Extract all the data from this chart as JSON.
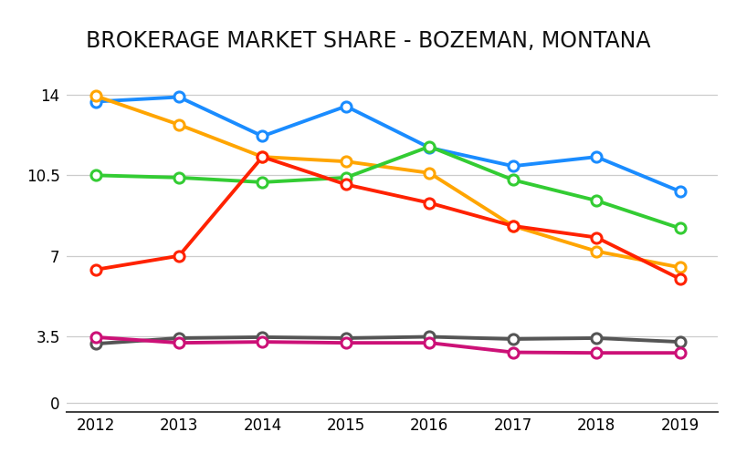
{
  "title": "BROKERAGE MARKET SHARE - BOZEMAN, MONTANA",
  "years": [
    2012,
    2013,
    2014,
    2015,
    2016,
    2017,
    2018,
    2019
  ],
  "series_upper": [
    {
      "color": "#1a8cff",
      "values": [
        13.7,
        13.9,
        12.2,
        13.5,
        11.7,
        10.9,
        11.3,
        9.8
      ]
    },
    {
      "color": "#ffa500",
      "values": [
        13.95,
        12.7,
        11.3,
        11.1,
        10.6,
        8.3,
        7.2,
        6.5
      ]
    },
    {
      "color": "#33cc33",
      "values": [
        10.5,
        10.4,
        10.2,
        10.4,
        11.75,
        10.3,
        9.4,
        8.2
      ]
    },
    {
      "color": "#ff2200",
      "values": [
        6.4,
        7.0,
        11.3,
        10.1,
        9.3,
        8.3,
        7.8,
        6.0
      ]
    }
  ],
  "series_lower": [
    {
      "color": "#555555",
      "values": [
        3.1,
        3.4,
        3.45,
        3.4,
        3.47,
        3.35,
        3.4,
        3.2
      ]
    },
    {
      "color": "#cc1177",
      "values": [
        3.45,
        3.15,
        3.2,
        3.15,
        3.15,
        2.65,
        2.62,
        2.62
      ]
    }
  ],
  "yticks_upper": [
    7.0,
    10.5,
    14.0
  ],
  "yticks_lower": [
    0.0,
    3.5
  ],
  "upper_ylim": [
    5.2,
    15.5
  ],
  "lower_ylim": [
    -0.5,
    4.5
  ],
  "background_color": "#ffffff",
  "grid_color": "#cccccc",
  "title_fontsize": 17,
  "marker": "o",
  "marker_facecolor": "white",
  "linewidth": 2.8,
  "markersize": 8,
  "markeredgewidth": 2.2
}
